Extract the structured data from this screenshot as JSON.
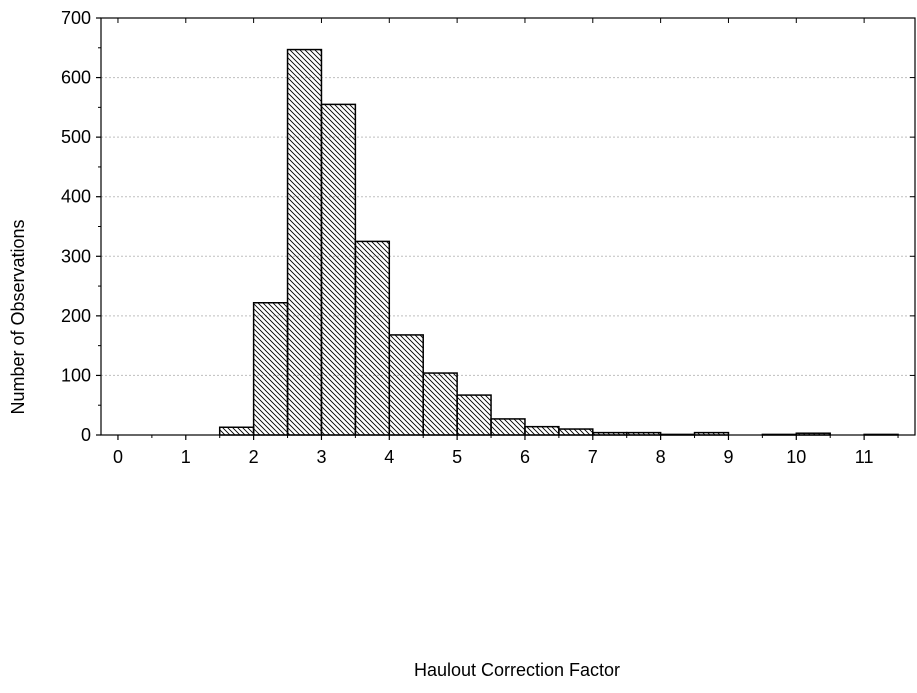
{
  "chart_data": {
    "type": "bar",
    "title": "",
    "xlabel": "Haulout Correction Factor",
    "ylabel": "Number of Observations",
    "xlim": [
      -0.25,
      11.75
    ],
    "ylim": [
      0,
      700
    ],
    "x_ticks": [
      "0",
      "1",
      "2",
      "3",
      "4",
      "5",
      "6",
      "7",
      "8",
      "9",
      "10",
      "11"
    ],
    "y_ticks": [
      "0",
      "100",
      "200",
      "300",
      "400",
      "500",
      "600",
      "700"
    ],
    "bin_width": 0.5,
    "bins": [
      {
        "start": 1.5,
        "end": 2.0,
        "value": 13
      },
      {
        "start": 2.0,
        "end": 2.5,
        "value": 222
      },
      {
        "start": 2.5,
        "end": 3.0,
        "value": 647
      },
      {
        "start": 3.0,
        "end": 3.5,
        "value": 555
      },
      {
        "start": 3.5,
        "end": 4.0,
        "value": 325
      },
      {
        "start": 4.0,
        "end": 4.5,
        "value": 168
      },
      {
        "start": 4.5,
        "end": 5.0,
        "value": 104
      },
      {
        "start": 5.0,
        "end": 5.5,
        "value": 67
      },
      {
        "start": 5.5,
        "end": 6.0,
        "value": 27
      },
      {
        "start": 6.0,
        "end": 6.5,
        "value": 14
      },
      {
        "start": 6.5,
        "end": 7.0,
        "value": 10
      },
      {
        "start": 7.0,
        "end": 7.5,
        "value": 4
      },
      {
        "start": 7.5,
        "end": 8.0,
        "value": 4
      },
      {
        "start": 8.0,
        "end": 8.5,
        "value": 1
      },
      {
        "start": 8.5,
        "end": 9.0,
        "value": 4
      },
      {
        "start": 9.0,
        "end": 9.5,
        "value": 0
      },
      {
        "start": 9.5,
        "end": 10.0,
        "value": 1
      },
      {
        "start": 10.0,
        "end": 10.5,
        "value": 3
      },
      {
        "start": 10.5,
        "end": 11.0,
        "value": 0
      },
      {
        "start": 11.0,
        "end": 11.5,
        "value": 1
      }
    ],
    "grid": {
      "horizontal": true,
      "vertical": false,
      "style": "dotted"
    },
    "bar_fill": "diagonal-hatch",
    "legend": "none",
    "colors": {
      "bar_stroke": "#000000",
      "hatch": "#000000",
      "grid": "#bfbfbf",
      "background": "#ffffff"
    }
  }
}
